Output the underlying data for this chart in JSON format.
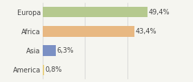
{
  "categories": [
    "Europa",
    "Africa",
    "Asia",
    "America"
  ],
  "values": [
    49.4,
    43.4,
    6.3,
    0.8
  ],
  "labels": [
    "49,4%",
    "43,4%",
    "6,3%",
    "0,8%"
  ],
  "bar_colors": [
    "#b5c98e",
    "#e8b882",
    "#7b90c4",
    "#e8d080"
  ],
  "background_color": "#f5f5f0",
  "xlim": [
    0,
    58
  ],
  "bar_height": 0.55,
  "label_fontsize": 7,
  "tick_fontsize": 7,
  "grid_ticks": [
    0,
    20,
    40,
    60
  ]
}
